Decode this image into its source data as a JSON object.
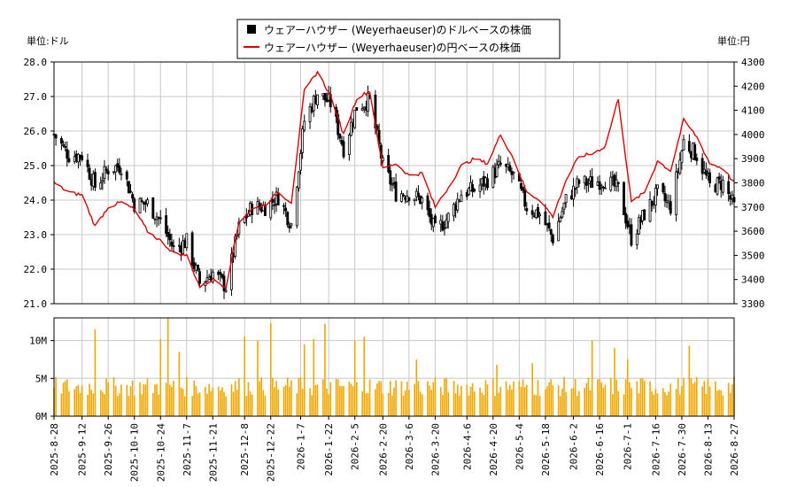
{
  "chart_data": [
    {
      "type": "candlestick-line",
      "legend": [
        {
          "label": "ウェアーハウザー (Weyerhaeuser)のドルベースの株価",
          "color": "#000000",
          "marker": "square"
        },
        {
          "label": "ウェアーハウザー (Weyerhaeuser)の円ベースの株価",
          "color": "#dd0000",
          "marker": "line"
        }
      ],
      "legend_position": "top-center",
      "y_left_label": "単位:ドル",
      "y_right_label": "単位:円",
      "y_left_ticks": [
        "21.0",
        "22.0",
        "23.0",
        "24.0",
        "25.0",
        "26.0",
        "27.0",
        "28.0"
      ],
      "y_left_lim": [
        21.0,
        28.0
      ],
      "y_right_ticks": [
        "3300",
        "3400",
        "3500",
        "3600",
        "3700",
        "3800",
        "3900",
        "4000",
        "4100",
        "4200",
        "4300"
      ],
      "y_right_lim": [
        3300,
        4300
      ],
      "grid": true,
      "series": [
        {
          "name": "ドルベース",
          "color": "#000000",
          "anchors": [
            [
              "2025-08-28",
              25.9
            ],
            [
              "2025-09-05",
              25.3
            ],
            [
              "2025-09-12",
              25.3
            ],
            [
              "2025-09-19",
              24.4
            ],
            [
              "2025-09-26",
              24.9
            ],
            [
              "2025-10-03",
              25.0
            ],
            [
              "2025-10-10",
              23.9
            ],
            [
              "2025-10-17",
              23.9
            ],
            [
              "2025-10-24",
              23.4
            ],
            [
              "2025-10-31",
              22.6
            ],
            [
              "2025-11-07",
              22.8
            ],
            [
              "2025-11-14",
              21.6
            ],
            [
              "2025-11-21",
              21.9
            ],
            [
              "2025-11-28",
              21.5
            ],
            [
              "2025-12-05",
              23.2
            ],
            [
              "2025-12-12",
              23.8
            ],
            [
              "2025-12-19",
              23.8
            ],
            [
              "2025-12-26",
              24.1
            ],
            [
              "2026-01-02",
              23.3
            ],
            [
              "2026-01-09",
              26.3
            ],
            [
              "2026-01-16",
              27.1
            ],
            [
              "2026-01-23",
              26.8
            ],
            [
              "2026-01-30",
              25.5
            ],
            [
              "2026-02-06",
              26.7
            ],
            [
              "2026-02-13",
              26.9
            ],
            [
              "2026-02-20",
              25.0
            ],
            [
              "2026-02-27",
              24.2
            ],
            [
              "2026-03-06",
              24.2
            ],
            [
              "2026-03-13",
              24.0
            ],
            [
              "2026-03-20",
              23.1
            ],
            [
              "2026-03-27",
              23.5
            ],
            [
              "2026-04-03",
              24.2
            ],
            [
              "2026-04-10",
              24.3
            ],
            [
              "2026-04-17",
              24.6
            ],
            [
              "2026-04-24",
              25.0
            ],
            [
              "2026-05-01",
              24.7
            ],
            [
              "2026-05-08",
              23.8
            ],
            [
              "2026-05-15",
              23.6
            ],
            [
              "2026-05-22",
              22.9
            ],
            [
              "2026-05-29",
              24.0
            ],
            [
              "2026-06-05",
              24.5
            ],
            [
              "2026-06-12",
              24.5
            ],
            [
              "2026-06-19",
              24.6
            ],
            [
              "2026-06-26",
              24.3
            ],
            [
              "2026-07-03",
              22.9
            ],
            [
              "2026-07-10",
              23.6
            ],
            [
              "2026-07-17",
              24.2
            ],
            [
              "2026-07-24",
              23.8
            ],
            [
              "2026-07-31",
              25.7
            ],
            [
              "2026-08-07",
              25.3
            ],
            [
              "2026-08-14",
              24.4
            ],
            [
              "2026-08-21",
              24.5
            ],
            [
              "2026-08-27",
              23.8
            ]
          ]
        },
        {
          "name": "円ベース",
          "color": "#dd0000",
          "anchors": [
            [
              "2025-08-28",
              3800
            ],
            [
              "2025-09-05",
              3760
            ],
            [
              "2025-09-12",
              3750
            ],
            [
              "2025-09-19",
              3620
            ],
            [
              "2025-09-26",
              3700
            ],
            [
              "2025-10-03",
              3720
            ],
            [
              "2025-10-10",
              3690
            ],
            [
              "2025-10-17",
              3600
            ],
            [
              "2025-10-24",
              3560
            ],
            [
              "2025-10-31",
              3510
            ],
            [
              "2025-11-07",
              3500
            ],
            [
              "2025-11-14",
              3370
            ],
            [
              "2025-11-21",
              3400
            ],
            [
              "2025-11-28",
              3370
            ],
            [
              "2025-12-05",
              3640
            ],
            [
              "2025-12-12",
              3690
            ],
            [
              "2025-12-19",
              3710
            ],
            [
              "2025-12-26",
              3760
            ],
            [
              "2026-01-02",
              3720
            ],
            [
              "2026-01-09",
              4180
            ],
            [
              "2026-01-16",
              4260
            ],
            [
              "2026-01-23",
              4160
            ],
            [
              "2026-01-30",
              4000
            ],
            [
              "2026-02-06",
              4150
            ],
            [
              "2026-02-13",
              4180
            ],
            [
              "2026-02-20",
              3860
            ],
            [
              "2026-02-27",
              3880
            ],
            [
              "2026-03-06",
              3830
            ],
            [
              "2026-03-13",
              3840
            ],
            [
              "2026-03-20",
              3700
            ],
            [
              "2026-03-27",
              3780
            ],
            [
              "2026-04-03",
              3870
            ],
            [
              "2026-04-10",
              3900
            ],
            [
              "2026-04-17",
              3880
            ],
            [
              "2026-04-24",
              4000
            ],
            [
              "2026-05-01",
              3900
            ],
            [
              "2026-05-08",
              3760
            ],
            [
              "2026-05-15",
              3730
            ],
            [
              "2026-05-22",
              3660
            ],
            [
              "2026-05-29",
              3810
            ],
            [
              "2026-06-05",
              3910
            ],
            [
              "2026-06-12",
              3920
            ],
            [
              "2026-06-19",
              3950
            ],
            [
              "2026-06-26",
              4150
            ],
            [
              "2026-07-03",
              3720
            ],
            [
              "2026-07-10",
              3760
            ],
            [
              "2026-07-17",
              3890
            ],
            [
              "2026-07-24",
              3850
            ],
            [
              "2026-07-31",
              4060
            ],
            [
              "2026-08-07",
              3990
            ],
            [
              "2026-08-14",
              3880
            ],
            [
              "2026-08-21",
              3860
            ],
            [
              "2026-08-27",
              3800
            ]
          ]
        }
      ]
    },
    {
      "type": "bar",
      "ylabel": "",
      "y_ticks": [
        "0M",
        "5M",
        "10M"
      ],
      "y_lim": [
        0,
        13
      ],
      "color": "#f0a800",
      "x_tick_labels": [
        "2025-8-28",
        "2025-9-12",
        "2025-9-26",
        "2025-10-10",
        "2025-10-24",
        "2025-11-7",
        "2025-11-21",
        "2025-12-8",
        "2025-12-22",
        "2026-1-7",
        "2026-1-22",
        "2026-2-5",
        "2026-2-20",
        "2026-3-6",
        "2026-3-20",
        "2026-4-6",
        "2026-4-20",
        "2026-5-4",
        "2026-5-18",
        "2026-6-2",
        "2026-6-16",
        "2026-7-1",
        "2026-7-16",
        "2026-7-30",
        "2026-8-13",
        "2026-8-27"
      ],
      "x_tick_dates": [
        "2025-08-28",
        "2025-09-12",
        "2025-09-26",
        "2025-10-10",
        "2025-10-24",
        "2025-11-07",
        "2025-11-21",
        "2025-12-08",
        "2025-12-22",
        "2026-01-07",
        "2026-01-22",
        "2026-02-05",
        "2026-02-20",
        "2026-03-06",
        "2026-03-20",
        "2026-04-06",
        "2026-04-20",
        "2026-05-04",
        "2026-05-18",
        "2026-06-02",
        "2026-06-16",
        "2026-07-01",
        "2026-07-16",
        "2026-07-30",
        "2026-08-13",
        "2026-08-27"
      ],
      "volume_millions_spikes": [
        [
          "2025-09-19",
          11.5
        ],
        [
          "2025-10-24",
          10.2
        ],
        [
          "2025-10-28",
          13.0
        ],
        [
          "2025-11-03",
          8.5
        ],
        [
          "2025-12-08",
          10.5
        ],
        [
          "2025-12-15",
          10.0
        ],
        [
          "2025-12-22",
          12.3
        ],
        [
          "2026-01-09",
          9.5
        ],
        [
          "2026-01-14",
          10.2
        ],
        [
          "2026-01-20",
          12.2
        ],
        [
          "2026-02-05",
          10.0
        ],
        [
          "2026-02-10",
          10.5
        ],
        [
          "2026-03-10",
          7.5
        ],
        [
          "2026-04-22",
          6.8
        ],
        [
          "2026-05-11",
          7.0
        ],
        [
          "2026-06-12",
          10.0
        ],
        [
          "2026-06-24",
          9.0
        ],
        [
          "2026-07-01",
          7.5
        ],
        [
          "2026-08-03",
          9.3
        ]
      ]
    }
  ]
}
